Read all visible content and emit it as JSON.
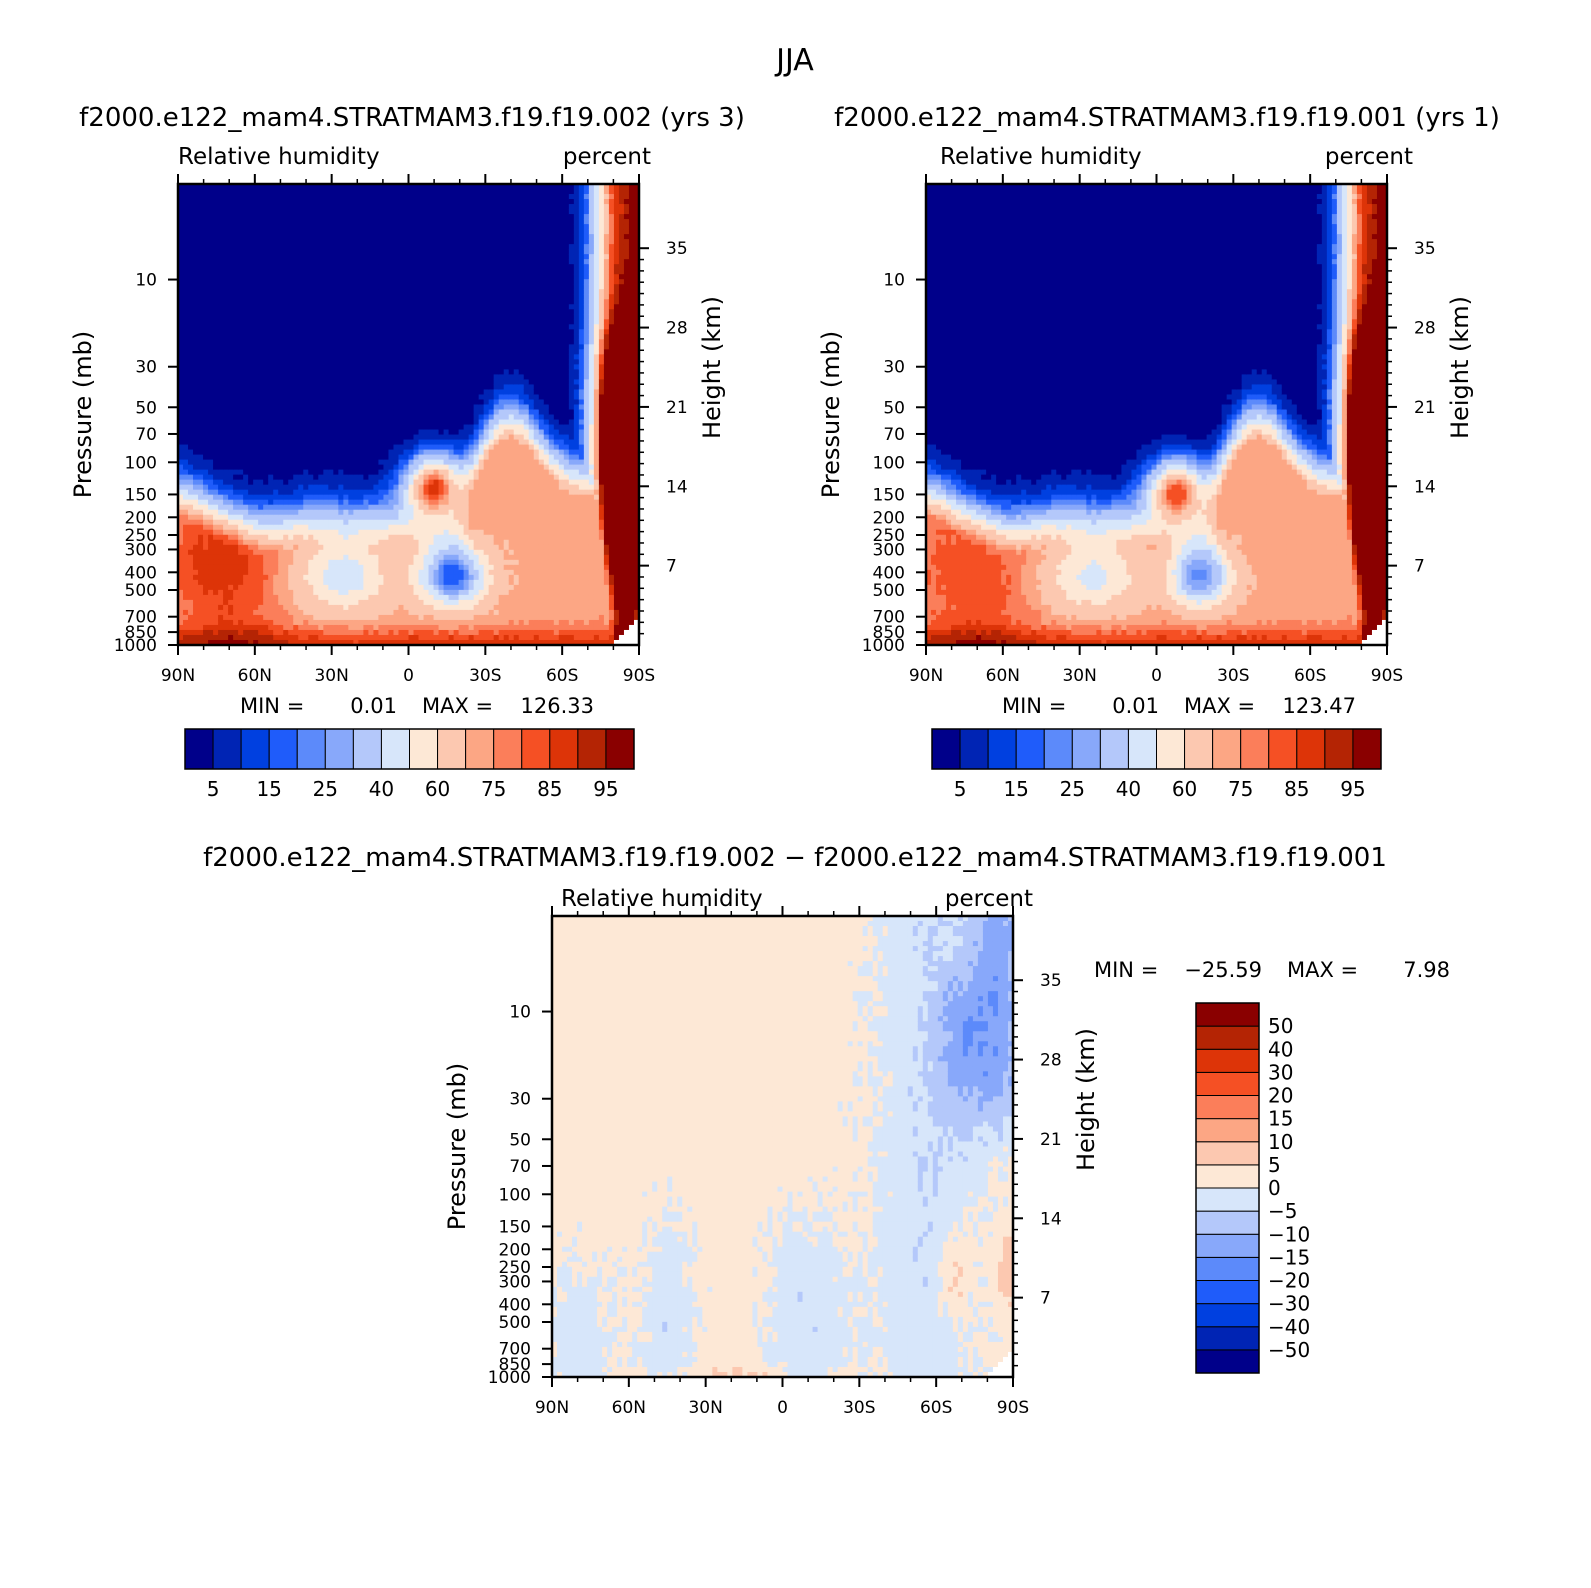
{
  "figure": {
    "title": "JJA"
  },
  "palettes": {
    "absolute": [
      "#00008a",
      "#0024b4",
      "#0040e0",
      "#1f5cfa",
      "#5c8afa",
      "#88a8fa",
      "#b4c8fa",
      "#d7e6fa",
      "#fde8d6",
      "#fcc8b0",
      "#fca684",
      "#fb7e5a",
      "#f55024",
      "#dd3408",
      "#b42404",
      "#8a0000"
    ],
    "difference": [
      "#00008a",
      "#0024b4",
      "#0040e0",
      "#1f5cfa",
      "#5c8afa",
      "#88a8fa",
      "#b4c8fa",
      "#d7e6fa",
      "#fde8d6",
      "#fcc8b0",
      "#fca684",
      "#fb7e5a",
      "#f55024",
      "#dd3408",
      "#b42404",
      "#8a0000"
    ]
  },
  "chart_data": [
    {
      "id": "panel-002",
      "type": "heatmap",
      "title": "f2000.e122_mam4.STRATMAM3.f19.f19.002 (yrs 3)",
      "variable": "Relative humidity",
      "units": "percent",
      "xlabel": "",
      "ylabel": "Pressure (mb)",
      "y2label": "Height (km)",
      "x_ticks": [
        "90N",
        "60N",
        "30N",
        "0",
        "30S",
        "60S",
        "90S"
      ],
      "y_ticks": [
        "10",
        "30",
        "50",
        "70",
        "100",
        "150",
        "200",
        "250",
        "300",
        "400",
        "500",
        "700",
        "850",
        "1000"
      ],
      "y2_ticks": [
        "35",
        "28",
        "21",
        "14",
        "7"
      ],
      "min_label": "MIN =",
      "min_value": "0.01",
      "max_label": "MAX =",
      "max_value": "126.33",
      "colorbar_labels": [
        "5",
        "15",
        "25",
        "40",
        "60",
        "75",
        "85",
        "95"
      ],
      "colorbar_levels": [
        5,
        10,
        15,
        20,
        25,
        30,
        40,
        50,
        60,
        70,
        75,
        80,
        85,
        90,
        95
      ],
      "humps": [
        {
          "lat": 75,
          "p": 360,
          "v": 88,
          "wlat": 12,
          "wp": 0.35
        },
        {
          "lat": -10,
          "p": 140,
          "v": 88,
          "wlat": 8,
          "wp": 0.3
        },
        {
          "lat": -17,
          "p": 420,
          "v": 15,
          "wlat": 9,
          "wp": 0.25
        },
        {
          "lat": 25,
          "p": 420,
          "v": 45,
          "wlat": 12,
          "wp": 0.3
        }
      ]
    },
    {
      "id": "panel-001",
      "type": "heatmap",
      "title": "f2000.e122_mam4.STRATMAM3.f19.f19.001 (yrs 1)",
      "variable": "Relative humidity",
      "units": "percent",
      "xlabel": "",
      "ylabel": "Pressure (mb)",
      "y2label": "Height (km)",
      "x_ticks": [
        "90N",
        "60N",
        "30N",
        "0",
        "30S",
        "60S",
        "90S"
      ],
      "y_ticks": [
        "10",
        "30",
        "50",
        "70",
        "100",
        "150",
        "200",
        "250",
        "300",
        "400",
        "500",
        "700",
        "850",
        "1000"
      ],
      "y2_ticks": [
        "35",
        "28",
        "21",
        "14",
        "7"
      ],
      "min_label": "MIN =",
      "min_value": "0.01",
      "max_label": "MAX =",
      "max_value": "123.47",
      "colorbar_labels": [
        "5",
        "15",
        "25",
        "40",
        "60",
        "75",
        "85",
        "95"
      ],
      "colorbar_levels": [
        5,
        10,
        15,
        20,
        25,
        30,
        40,
        50,
        60,
        70,
        75,
        80,
        85,
        90,
        95
      ],
      "humps": [
        {
          "lat": 75,
          "p": 380,
          "v": 82,
          "wlat": 12,
          "wp": 0.35
        },
        {
          "lat": -8,
          "p": 150,
          "v": 86,
          "wlat": 8,
          "wp": 0.3
        },
        {
          "lat": -17,
          "p": 420,
          "v": 22,
          "wlat": 8,
          "wp": 0.25
        },
        {
          "lat": 25,
          "p": 420,
          "v": 48,
          "wlat": 12,
          "wp": 0.3
        }
      ]
    },
    {
      "id": "panel-diff",
      "type": "heatmap",
      "title": "f2000.e122_mam4.STRATMAM3.f19.f19.002 − f2000.e122_mam4.STRATMAM3.f19.f19.001",
      "variable": "Relative humidity",
      "units": "percent",
      "xlabel": "",
      "ylabel": "Pressure (mb)",
      "y2label": "Height (km)",
      "x_ticks": [
        "90N",
        "60N",
        "30N",
        "0",
        "30S",
        "60S",
        "90S"
      ],
      "y_ticks": [
        "10",
        "30",
        "50",
        "70",
        "100",
        "150",
        "200",
        "250",
        "300",
        "400",
        "500",
        "700",
        "850",
        "1000"
      ],
      "y2_ticks": [
        "35",
        "28",
        "21",
        "14",
        "7"
      ],
      "min_label": "MIN =",
      "min_value": "−25.59",
      "max_label": "MAX =",
      "max_value": "7.98",
      "colorbar_labels": [
        "50",
        "40",
        "30",
        "20",
        "15",
        "10",
        "5",
        "0",
        "−5",
        "−10",
        "−15",
        "−20",
        "−30",
        "−40",
        "−50"
      ],
      "colorbar_levels": [
        -50,
        -40,
        -30,
        -20,
        -15,
        -10,
        -5,
        0,
        5,
        10,
        15,
        20,
        30,
        40,
        50
      ]
    }
  ]
}
